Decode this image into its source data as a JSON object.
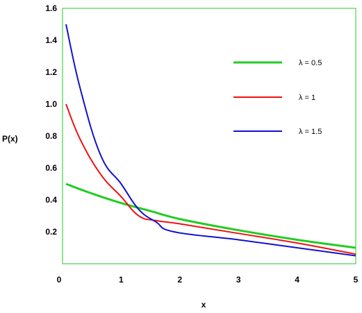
{
  "chart_data": {
    "type": "line",
    "title": "",
    "xlabel": "x",
    "ylabel": "P(x)",
    "xlim": [
      0,
      5
    ],
    "ylim": [
      0,
      1.6
    ],
    "x_ticks": [
      "0",
      "1",
      "2",
      "3",
      "4",
      "5"
    ],
    "y_ticks": [
      "0.2",
      "0.4",
      "0.6",
      "0.8",
      "1.0",
      "1.2",
      "1.4",
      "1.6"
    ],
    "grid": false,
    "legend_position": "top-right",
    "series": [
      {
        "name": "λ = 0.5",
        "color": "#22cc22",
        "x": [
          0,
          0.5,
          1,
          1.5,
          2,
          3,
          4,
          5
        ],
        "y": [
          0.5,
          0.44,
          0.38,
          0.33,
          0.28,
          0.21,
          0.15,
          0.1
        ]
      },
      {
        "name": "λ = 1",
        "color": "#ee1111",
        "x": [
          0,
          0.3,
          0.65,
          1,
          1.3,
          1.6,
          2,
          3,
          4,
          5
        ],
        "y": [
          1.0,
          0.78,
          0.56,
          0.42,
          0.3,
          0.27,
          0.25,
          0.19,
          0.13,
          0.06
        ]
      },
      {
        "name": "λ = 1.5",
        "color": "#1111cc",
        "x": [
          0,
          0.3,
          0.65,
          1,
          1.3,
          1.6,
          1.9,
          3,
          4,
          5
        ],
        "y": [
          1.5,
          1.1,
          0.68,
          0.5,
          0.34,
          0.26,
          0.2,
          0.15,
          0.1,
          0.05
        ]
      }
    ]
  }
}
